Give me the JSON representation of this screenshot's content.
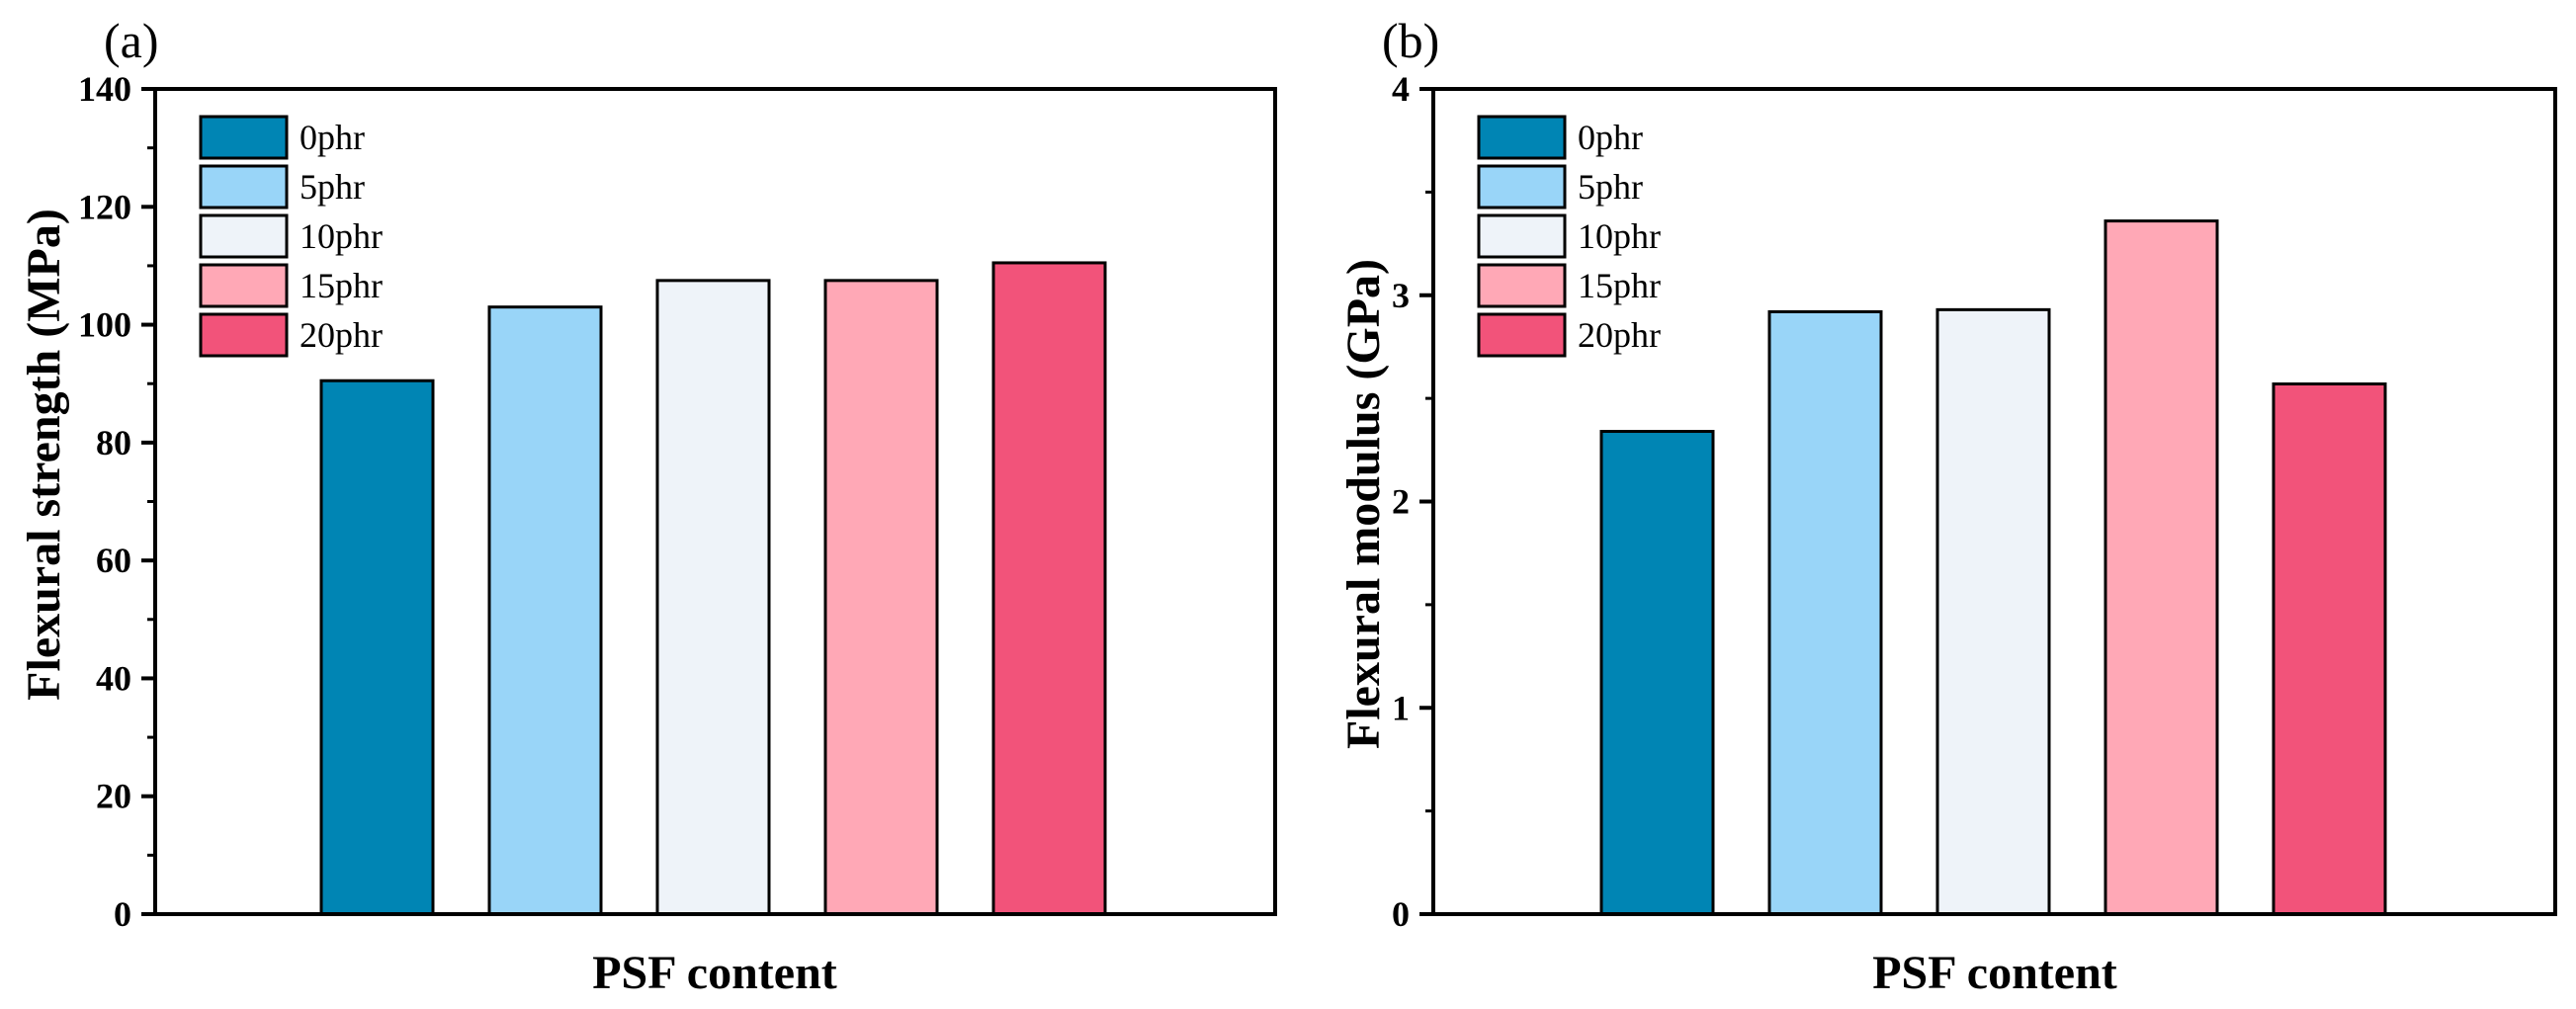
{
  "chart_data": [
    {
      "type": "bar",
      "panel": "(a)",
      "title": "",
      "xlabel": "PSF content",
      "ylabel": "Flexural strength (MPa)",
      "ylim": [
        0,
        140
      ],
      "yticks": [
        0,
        20,
        40,
        60,
        80,
        100,
        120,
        140
      ],
      "grid": false,
      "legend_position": "top-left",
      "series": [
        {
          "name": "0phr",
          "value": 90.5,
          "color": "#0085B4"
        },
        {
          "name": "5phr",
          "value": 103,
          "color": "#99D5F8"
        },
        {
          "name": "10phr",
          "value": 107.5,
          "color": "#EEF3F9"
        },
        {
          "name": "15phr",
          "value": 107.5,
          "color": "#FFA8B6"
        },
        {
          "name": "20phr",
          "value": 110.5,
          "color": "#F2537A"
        }
      ]
    },
    {
      "type": "bar",
      "panel": "(b)",
      "title": "",
      "xlabel": "PSF content",
      "ylabel": "Flexural modulus (GPa)",
      "ylim": [
        0,
        4
      ],
      "yticks": [
        0,
        1,
        2,
        3,
        4
      ],
      "grid": false,
      "legend_position": "top-left",
      "series": [
        {
          "name": "0phr",
          "value": 2.34,
          "color": "#0085B4"
        },
        {
          "name": "5phr",
          "value": 2.92,
          "color": "#99D5F8"
        },
        {
          "name": "10phr",
          "value": 2.93,
          "color": "#EEF3F9"
        },
        {
          "name": "15phr",
          "value": 3.36,
          "color": "#FFA8B6"
        },
        {
          "name": "20phr",
          "value": 2.57,
          "color": "#F2537A"
        }
      ]
    }
  ]
}
